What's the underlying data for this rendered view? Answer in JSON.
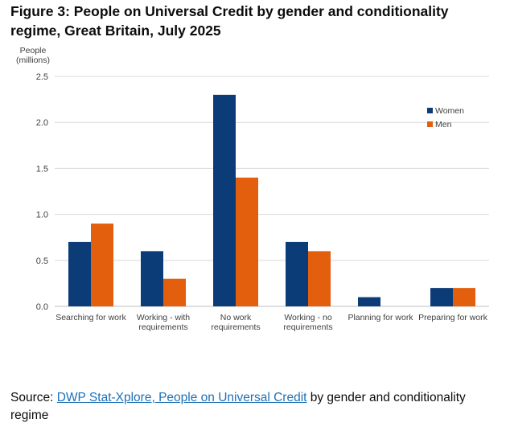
{
  "title": "Figure 3: People on Universal Credit by gender and conditionality regime, Great Britain, July 2025",
  "source": {
    "prefix": "Source: ",
    "link_text": "DWP Stat-Xplore, People on Universal Credit",
    "suffix": " by gender and conditionality regime"
  },
  "chart_data": {
    "type": "bar",
    "title": "",
    "ylabel_lines": [
      "People",
      "(millions)"
    ],
    "xlabel": "",
    "ylim": [
      0,
      2.5
    ],
    "yticks": [
      "0.0",
      "0.5",
      "1.0",
      "1.5",
      "2.0",
      "2.5"
    ],
    "ytick_values": [
      0,
      0.5,
      1.0,
      1.5,
      2.0,
      2.5
    ],
    "grid": true,
    "legend_position": "right",
    "categories": [
      [
        "Searching for work"
      ],
      [
        "Working - with",
        "requirements"
      ],
      [
        "No work",
        "requirements"
      ],
      [
        "Working - no",
        "requirements"
      ],
      [
        "Planning for work"
      ],
      [
        "Preparing for work"
      ]
    ],
    "series": [
      {
        "name": "Women",
        "color": "#0c3c78",
        "values": [
          0.7,
          0.6,
          2.3,
          0.7,
          0.1,
          0.2
        ]
      },
      {
        "name": "Men",
        "color": "#e35f0e",
        "values": [
          0.9,
          0.3,
          1.4,
          0.6,
          0.0,
          0.2
        ]
      }
    ]
  }
}
